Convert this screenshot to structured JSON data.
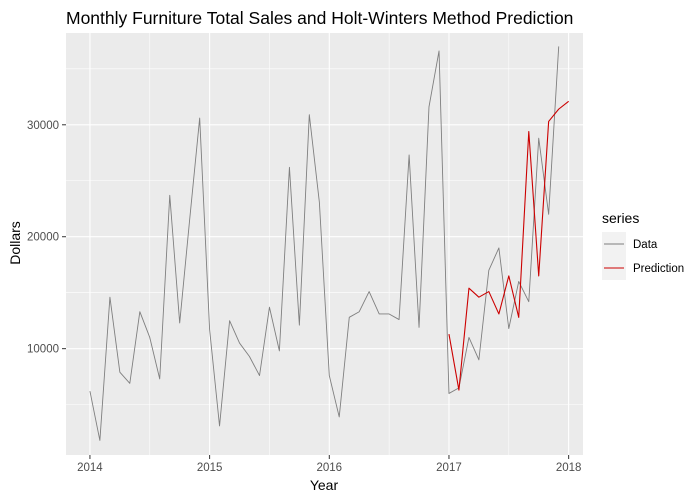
{
  "chart_data": {
    "type": "line",
    "title": "Monthly Furniture Total Sales and Holt-Winters Method Prediction",
    "xlabel": "Year",
    "ylabel": "Dollars",
    "xlim": [
      2013.8,
      2018.12
    ],
    "ylim": [
      500,
      38200
    ],
    "x_ticks": [
      2014,
      2015,
      2016,
      2017,
      2018
    ],
    "x_tick_labels": [
      "2014",
      "2015",
      "2016",
      "2017",
      "2018"
    ],
    "y_ticks": [
      10000,
      20000,
      30000
    ],
    "y_tick_labels": [
      "10000",
      "20000",
      "30000"
    ],
    "grid": true,
    "legend": {
      "title": "series",
      "position": "right"
    },
    "series": [
      {
        "name": "Data",
        "color": "#7f7f7f",
        "x": [
          2014.0,
          2014.083,
          2014.167,
          2014.25,
          2014.333,
          2014.417,
          2014.5,
          2014.583,
          2014.667,
          2014.75,
          2014.833,
          2014.917,
          2015.0,
          2015.083,
          2015.167,
          2015.25,
          2015.333,
          2015.417,
          2015.5,
          2015.583,
          2015.667,
          2015.75,
          2015.833,
          2015.917,
          2016.0,
          2016.083,
          2016.167,
          2016.25,
          2016.333,
          2016.417,
          2016.5,
          2016.583,
          2016.667,
          2016.75,
          2016.833,
          2016.917,
          2017.0,
          2017.083,
          2017.167,
          2017.25,
          2017.333,
          2017.417,
          2017.5,
          2017.583,
          2017.667,
          2017.75,
          2017.833,
          2017.917
        ],
        "values": [
          6200,
          1800,
          14600,
          7900,
          6900,
          13300,
          11000,
          7300,
          23700,
          12300,
          21500,
          30600,
          11700,
          3100,
          12500,
          10500,
          9300,
          7600,
          13700,
          9800,
          26200,
          12100,
          30900,
          23100,
          7600,
          3900,
          12800,
          13300,
          15100,
          13100,
          13100,
          12600,
          27300,
          11900,
          31600,
          36600,
          6000,
          6500,
          11000,
          9000,
          17000,
          19000,
          11800,
          16000,
          14200,
          28800,
          22000,
          37000
        ]
      },
      {
        "name": "Prediction",
        "color": "#cc0000",
        "x": [
          2017.0,
          2017.083,
          2017.167,
          2017.25,
          2017.333,
          2017.417,
          2017.5,
          2017.583,
          2017.667,
          2017.75,
          2017.833,
          2017.917,
          2018.0
        ],
        "values": [
          11300,
          6300,
          15400,
          14600,
          15100,
          13100,
          16500,
          12800,
          29400,
          16500,
          30300,
          31400,
          32100
        ]
      }
    ]
  }
}
